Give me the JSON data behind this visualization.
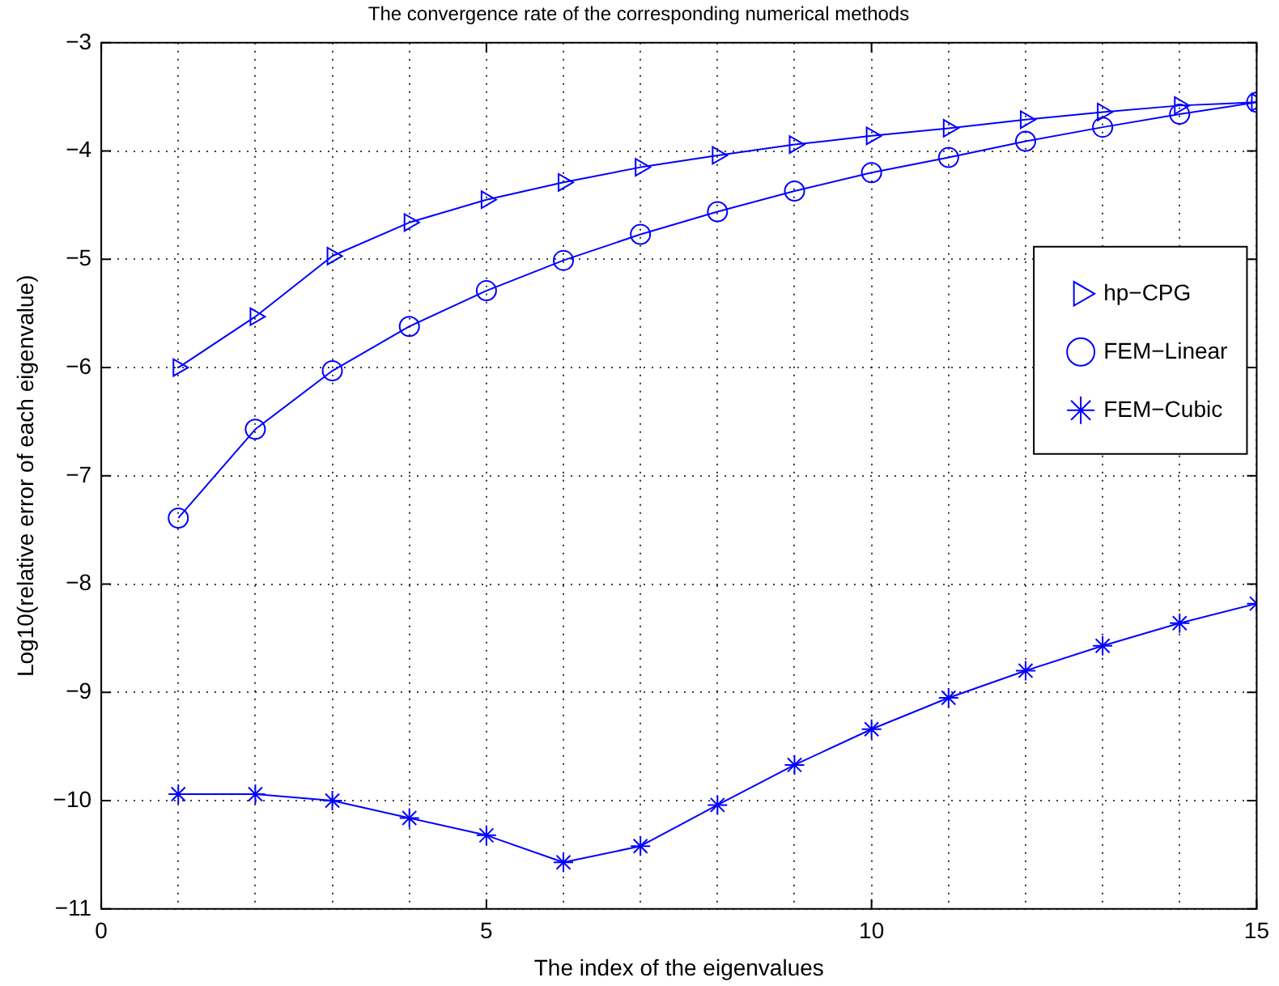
{
  "chart_data": {
    "type": "line",
    "title": "The convergence rate of the corresponding numerical methods",
    "xlabel": "The index of the eigenvalues",
    "ylabel": "Log10(relative error of each eigenvalue)",
    "x": [
      1,
      2,
      3,
      4,
      5,
      6,
      7,
      8,
      9,
      10,
      11,
      12,
      13,
      14,
      15
    ],
    "series": [
      {
        "name": "hp−CPG",
        "color": "#0000ff",
        "marker": "triangle",
        "values": [
          -6.0,
          -5.53,
          -4.97,
          -4.66,
          -4.45,
          -4.29,
          -4.15,
          -4.04,
          -3.94,
          -3.86,
          -3.79,
          -3.71,
          -3.64,
          -3.58,
          -3.55
        ]
      },
      {
        "name": "FEM−Linear",
        "color": "#0000ff",
        "marker": "circle",
        "values": [
          -7.39,
          -6.57,
          -6.03,
          -5.62,
          -5.29,
          -5.01,
          -4.77,
          -4.56,
          -4.37,
          -4.2,
          -4.06,
          -3.91,
          -3.78,
          -3.66,
          -3.55
        ]
      },
      {
        "name": "FEM−Cubic",
        "color": "#0000ff",
        "marker": "cross",
        "values": [
          -9.94,
          -9.94,
          -10.0,
          -10.16,
          -10.32,
          -10.57,
          -10.42,
          -10.04,
          -9.67,
          -9.34,
          -9.05,
          -8.8,
          -8.57,
          -8.36,
          -8.18
        ]
      }
    ],
    "xlim": [
      0,
      15
    ],
    "xticks": [
      0,
      {
        "value": 1,
        "label": null
      },
      {
        "value": 2,
        "label": null
      },
      {
        "value": 3,
        "label": null
      },
      {
        "value": 4,
        "label": null
      },
      5,
      {
        "value": 6,
        "label": null
      },
      {
        "value": 7,
        "label": null
      },
      {
        "value": 8,
        "label": null
      },
      {
        "value": 9,
        "label": null
      },
      10,
      {
        "value": 11,
        "label": null
      },
      {
        "value": 12,
        "label": null
      },
      {
        "value": 13,
        "label": null
      },
      {
        "value": 14,
        "label": null
      },
      15
    ],
    "ylim": [
      -11,
      -3
    ],
    "yticks": [
      -11,
      -10,
      -9,
      -8,
      -7,
      -6,
      -5,
      -4,
      -3
    ],
    "grid": true,
    "legend": "right",
    "line_style": "solid"
  }
}
